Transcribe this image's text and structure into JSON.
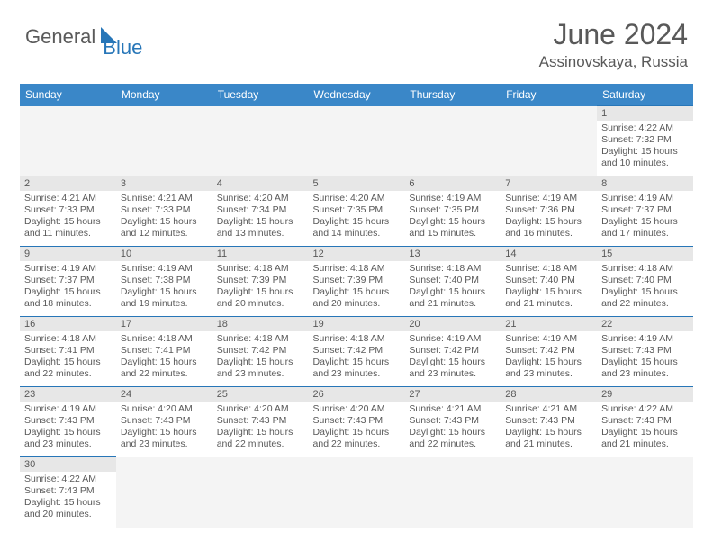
{
  "brand": {
    "part1": "General",
    "part2": "Blue"
  },
  "title": "June 2024",
  "location": "Assinovskaya, Russia",
  "colors": {
    "header_bg": "#3a87c8",
    "header_text": "#ffffff",
    "daynum_bg": "#e7e7e7",
    "text_color": "#595959",
    "border_color": "#2776b8",
    "brand_gray": "#5a5a5a",
    "brand_blue": "#2776b8",
    "background": "#ffffff"
  },
  "typography": {
    "title_fontsize": 32,
    "location_fontsize": 17,
    "dayheader_fontsize": 12,
    "daynum_fontsize": 11,
    "body_fontsize": 10.5
  },
  "day_headers": [
    "Sunday",
    "Monday",
    "Tuesday",
    "Wednesday",
    "Thursday",
    "Friday",
    "Saturday"
  ],
  "weeks": [
    [
      null,
      null,
      null,
      null,
      null,
      null,
      {
        "n": "1",
        "sr": "4:22 AM",
        "ss": "7:32 PM",
        "dl": "15 hours and 10 minutes."
      }
    ],
    [
      {
        "n": "2",
        "sr": "4:21 AM",
        "ss": "7:33 PM",
        "dl": "15 hours and 11 minutes."
      },
      {
        "n": "3",
        "sr": "4:21 AM",
        "ss": "7:33 PM",
        "dl": "15 hours and 12 minutes."
      },
      {
        "n": "4",
        "sr": "4:20 AM",
        "ss": "7:34 PM",
        "dl": "15 hours and 13 minutes."
      },
      {
        "n": "5",
        "sr": "4:20 AM",
        "ss": "7:35 PM",
        "dl": "15 hours and 14 minutes."
      },
      {
        "n": "6",
        "sr": "4:19 AM",
        "ss": "7:35 PM",
        "dl": "15 hours and 15 minutes."
      },
      {
        "n": "7",
        "sr": "4:19 AM",
        "ss": "7:36 PM",
        "dl": "15 hours and 16 minutes."
      },
      {
        "n": "8",
        "sr": "4:19 AM",
        "ss": "7:37 PM",
        "dl": "15 hours and 17 minutes."
      }
    ],
    [
      {
        "n": "9",
        "sr": "4:19 AM",
        "ss": "7:37 PM",
        "dl": "15 hours and 18 minutes."
      },
      {
        "n": "10",
        "sr": "4:19 AM",
        "ss": "7:38 PM",
        "dl": "15 hours and 19 minutes."
      },
      {
        "n": "11",
        "sr": "4:18 AM",
        "ss": "7:39 PM",
        "dl": "15 hours and 20 minutes."
      },
      {
        "n": "12",
        "sr": "4:18 AM",
        "ss": "7:39 PM",
        "dl": "15 hours and 20 minutes."
      },
      {
        "n": "13",
        "sr": "4:18 AM",
        "ss": "7:40 PM",
        "dl": "15 hours and 21 minutes."
      },
      {
        "n": "14",
        "sr": "4:18 AM",
        "ss": "7:40 PM",
        "dl": "15 hours and 21 minutes."
      },
      {
        "n": "15",
        "sr": "4:18 AM",
        "ss": "7:40 PM",
        "dl": "15 hours and 22 minutes."
      }
    ],
    [
      {
        "n": "16",
        "sr": "4:18 AM",
        "ss": "7:41 PM",
        "dl": "15 hours and 22 minutes."
      },
      {
        "n": "17",
        "sr": "4:18 AM",
        "ss": "7:41 PM",
        "dl": "15 hours and 22 minutes."
      },
      {
        "n": "18",
        "sr": "4:18 AM",
        "ss": "7:42 PM",
        "dl": "15 hours and 23 minutes."
      },
      {
        "n": "19",
        "sr": "4:18 AM",
        "ss": "7:42 PM",
        "dl": "15 hours and 23 minutes."
      },
      {
        "n": "20",
        "sr": "4:19 AM",
        "ss": "7:42 PM",
        "dl": "15 hours and 23 minutes."
      },
      {
        "n": "21",
        "sr": "4:19 AM",
        "ss": "7:42 PM",
        "dl": "15 hours and 23 minutes."
      },
      {
        "n": "22",
        "sr": "4:19 AM",
        "ss": "7:43 PM",
        "dl": "15 hours and 23 minutes."
      }
    ],
    [
      {
        "n": "23",
        "sr": "4:19 AM",
        "ss": "7:43 PM",
        "dl": "15 hours and 23 minutes."
      },
      {
        "n": "24",
        "sr": "4:20 AM",
        "ss": "7:43 PM",
        "dl": "15 hours and 23 minutes."
      },
      {
        "n": "25",
        "sr": "4:20 AM",
        "ss": "7:43 PM",
        "dl": "15 hours and 22 minutes."
      },
      {
        "n": "26",
        "sr": "4:20 AM",
        "ss": "7:43 PM",
        "dl": "15 hours and 22 minutes."
      },
      {
        "n": "27",
        "sr": "4:21 AM",
        "ss": "7:43 PM",
        "dl": "15 hours and 22 minutes."
      },
      {
        "n": "28",
        "sr": "4:21 AM",
        "ss": "7:43 PM",
        "dl": "15 hours and 21 minutes."
      },
      {
        "n": "29",
        "sr": "4:22 AM",
        "ss": "7:43 PM",
        "dl": "15 hours and 21 minutes."
      }
    ],
    [
      {
        "n": "30",
        "sr": "4:22 AM",
        "ss": "7:43 PM",
        "dl": "15 hours and 20 minutes."
      },
      null,
      null,
      null,
      null,
      null,
      null
    ]
  ],
  "labels": {
    "sunrise": "Sunrise:",
    "sunset": "Sunset:",
    "daylight": "Daylight:"
  }
}
